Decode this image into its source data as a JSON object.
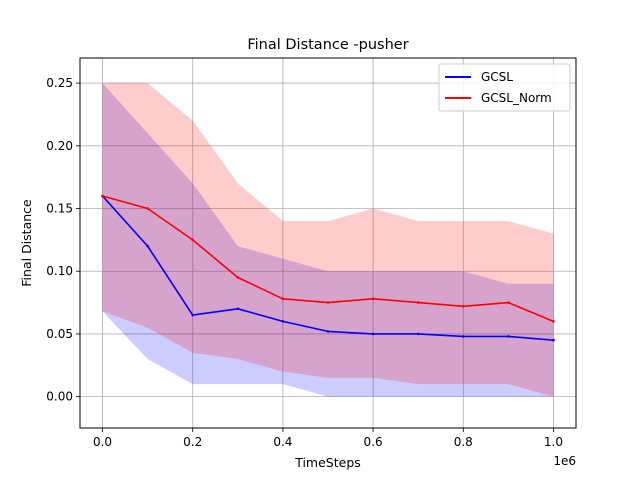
{
  "chart_data": {
    "type": "line",
    "title": "Final Distance -pusher",
    "xlabel": "TimeSteps",
    "ylabel": "Final Distance",
    "x_offset_label": "1e6",
    "xlim": [
      -0.05,
      1.05
    ],
    "ylim": [
      -0.025,
      0.27
    ],
    "xticks": [
      0.0,
      0.2,
      0.4,
      0.6,
      0.8,
      1.0
    ],
    "xtick_labels": [
      "0.0",
      "0.2",
      "0.4",
      "0.6",
      "0.8",
      "1.0"
    ],
    "yticks": [
      0.0,
      0.05,
      0.1,
      0.15,
      0.2,
      0.25
    ],
    "ytick_labels": [
      "0.00",
      "0.05",
      "0.10",
      "0.15",
      "0.20",
      "0.25"
    ],
    "grid": true,
    "legend_position": "top-right",
    "series": [
      {
        "name": "GCSL",
        "color": "#0000ff",
        "band_color": "#0000ff",
        "band_opacity": 0.2,
        "x": [
          0.0,
          0.1,
          0.2,
          0.3,
          0.4,
          0.5,
          0.6,
          0.7,
          0.8,
          0.9,
          1.0
        ],
        "y": [
          0.16,
          0.12,
          0.065,
          0.07,
          0.06,
          0.052,
          0.05,
          0.05,
          0.048,
          0.048,
          0.045
        ],
        "upper": [
          0.25,
          0.21,
          0.17,
          0.12,
          0.11,
          0.1,
          0.1,
          0.1,
          0.1,
          0.09,
          0.09
        ],
        "lower": [
          0.068,
          0.03,
          0.01,
          0.01,
          0.01,
          0.0,
          0.0,
          0.0,
          0.0,
          0.0,
          0.0
        ]
      },
      {
        "name": "GCSL_Norm",
        "color": "#ff0000",
        "band_color": "#ff0000",
        "band_opacity": 0.2,
        "x": [
          0.0,
          0.1,
          0.2,
          0.3,
          0.4,
          0.5,
          0.6,
          0.7,
          0.8,
          0.9,
          1.0
        ],
        "y": [
          0.16,
          0.15,
          0.125,
          0.095,
          0.078,
          0.075,
          0.078,
          0.075,
          0.072,
          0.075,
          0.06
        ],
        "upper": [
          0.25,
          0.25,
          0.22,
          0.17,
          0.14,
          0.14,
          0.15,
          0.14,
          0.14,
          0.14,
          0.13
        ],
        "lower": [
          0.068,
          0.055,
          0.035,
          0.03,
          0.02,
          0.015,
          0.015,
          0.01,
          0.01,
          0.01,
          0.0
        ]
      }
    ]
  }
}
